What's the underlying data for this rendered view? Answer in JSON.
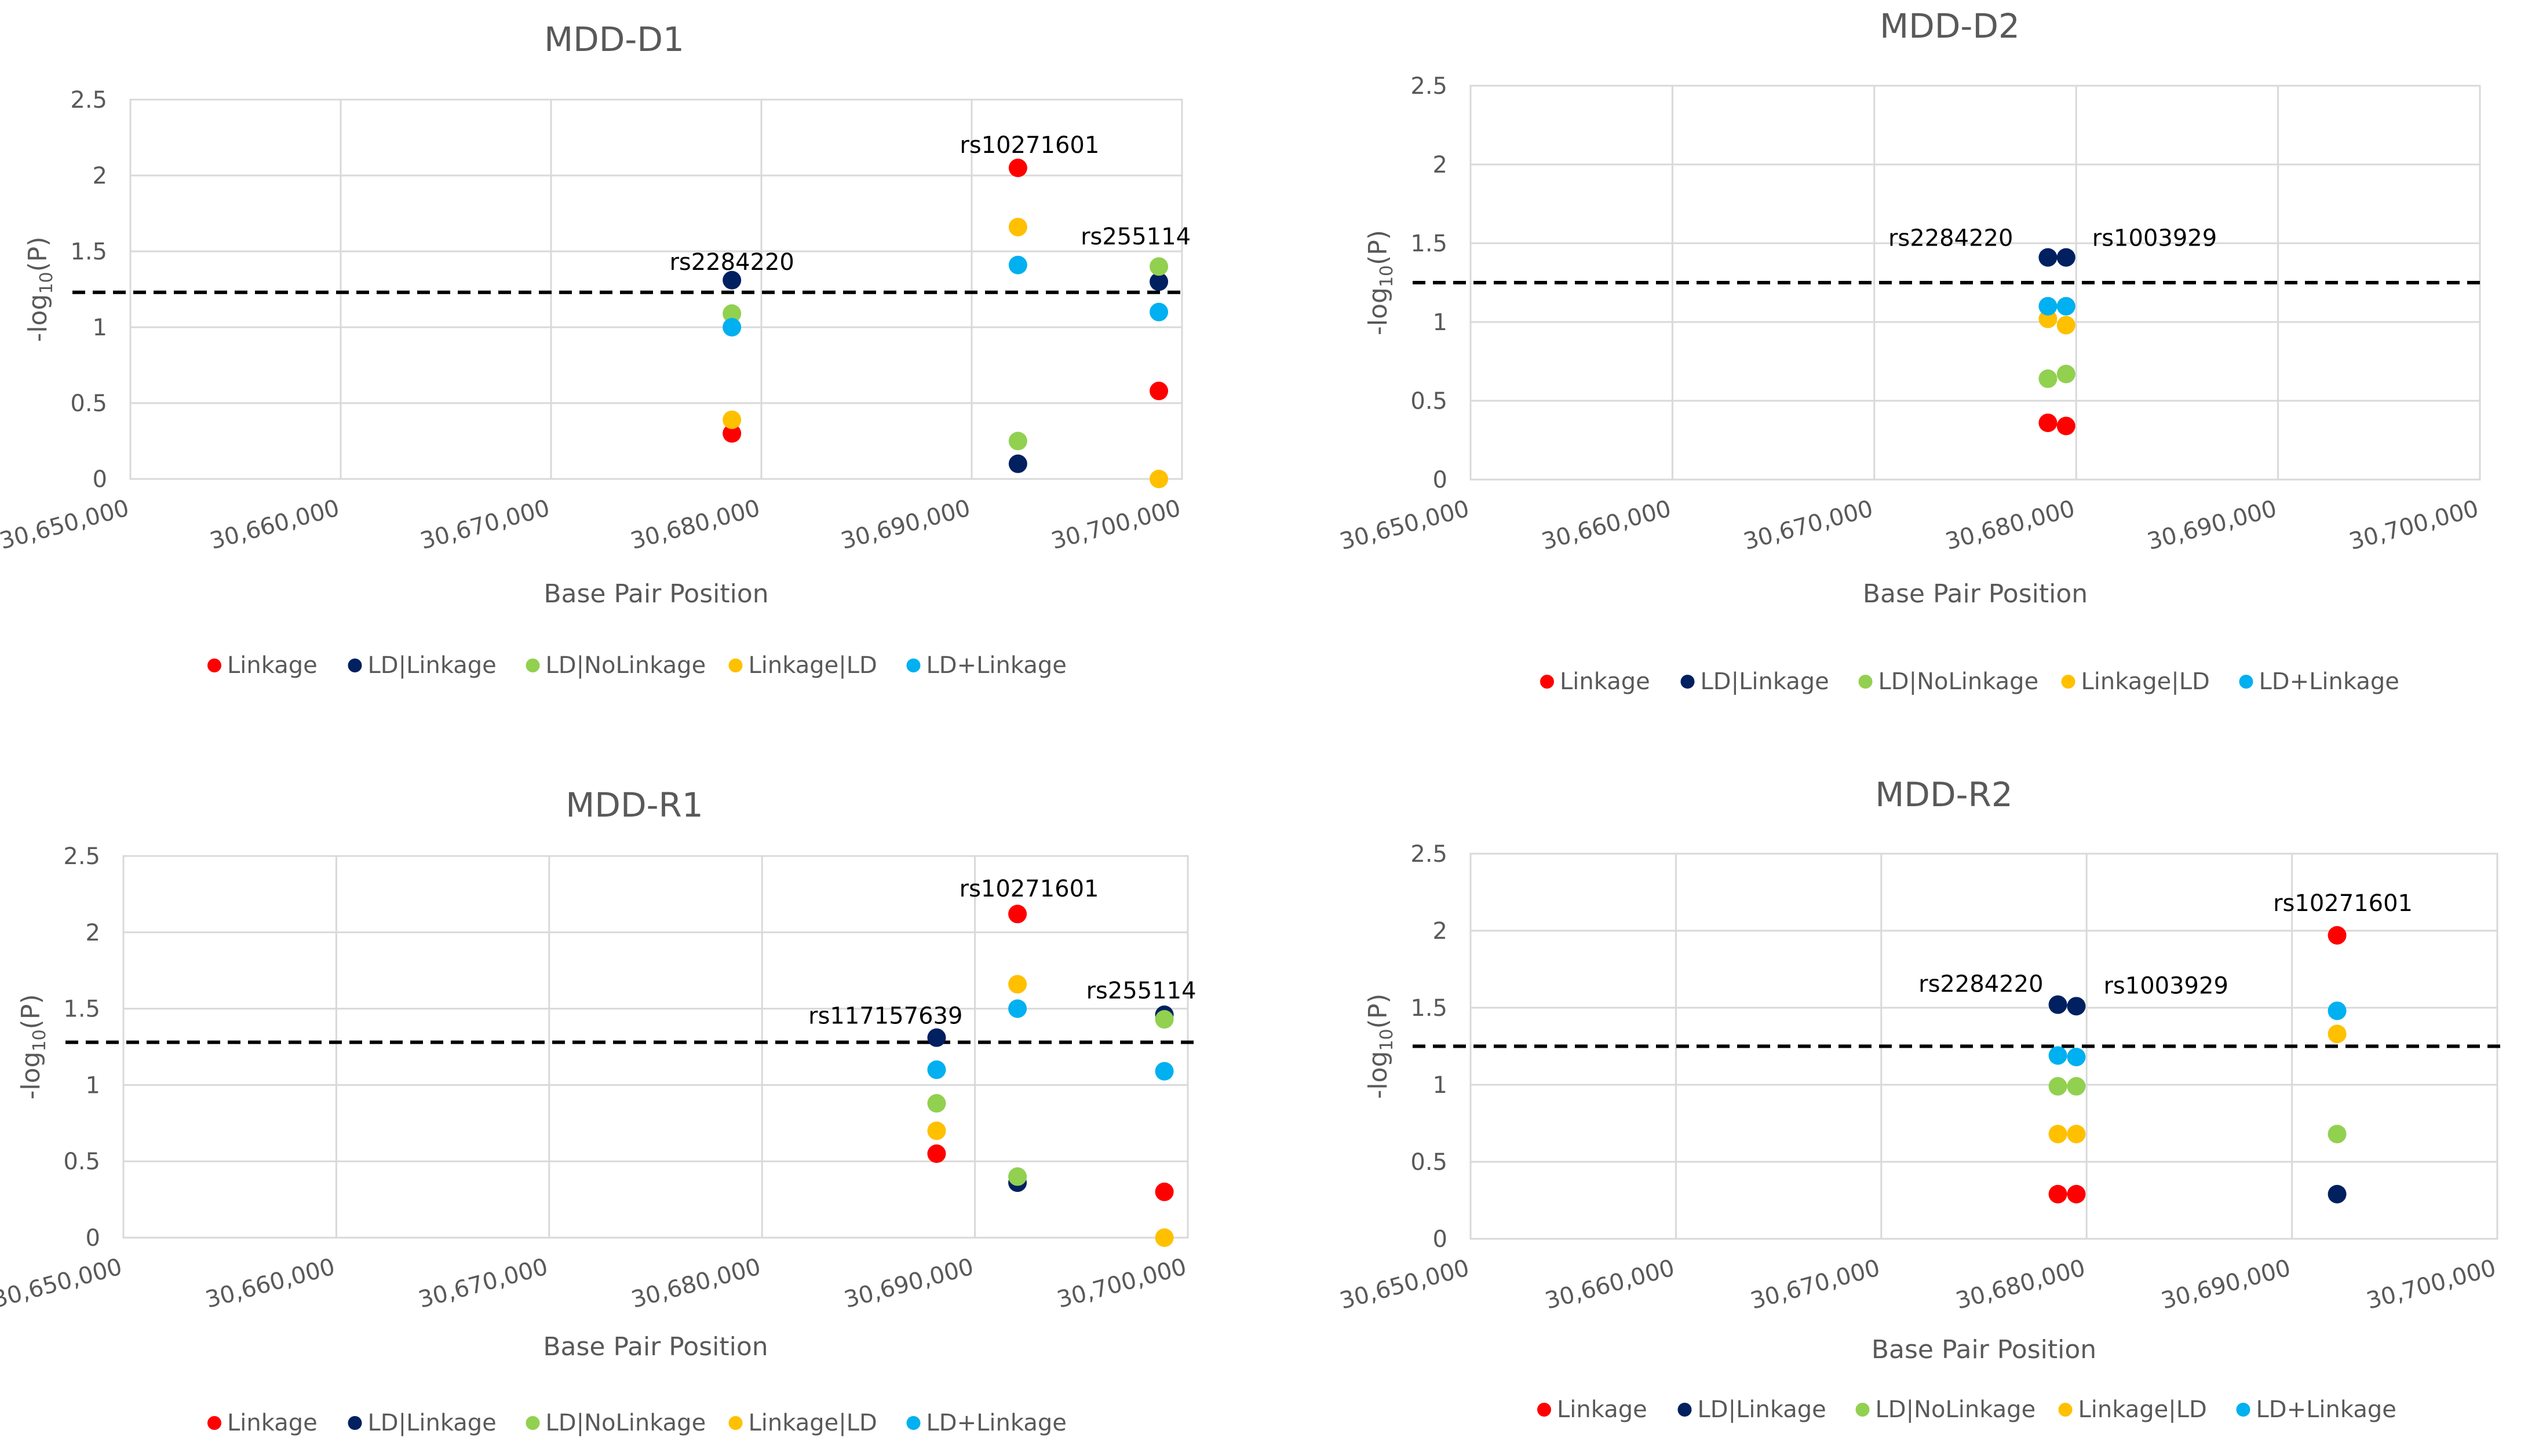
{
  "colors": {
    "Linkage": "#ff0000",
    "LD|Linkage": "#002060",
    "LD|NoLinkage": "#92d050",
    "Linkage|LD": "#ffc000",
    "LD+Linkage": "#00b0f0"
  },
  "chart_data": [
    {
      "type": "scatter",
      "title": "MDD-D1",
      "xlabel": "Base Pair Position",
      "ylabel": "-log10(P)",
      "xlim": [
        30650000,
        30700000
      ],
      "ylim": [
        0,
        2.5
      ],
      "xticks": [
        "30,650,000",
        "30,660,000",
        "30,670,000",
        "30,680,000",
        "30,690,000",
        "30,700,000"
      ],
      "yticks": [
        "0",
        "0.5",
        "1",
        "1.5",
        "2",
        "2.5"
      ],
      "threshold": 1.23,
      "series": [
        {
          "name": "Linkage",
          "points": [
            [
              30678600,
              0.3
            ],
            [
              30692200,
              2.05
            ],
            [
              30698900,
              0.58
            ]
          ]
        },
        {
          "name": "LD|Linkage",
          "points": [
            [
              30678600,
              1.31
            ],
            [
              30692200,
              0.1
            ],
            [
              30698900,
              1.3
            ]
          ]
        },
        {
          "name": "LD|NoLinkage",
          "points": [
            [
              30678600,
              1.09
            ],
            [
              30692200,
              0.25
            ],
            [
              30698900,
              1.4
            ]
          ]
        },
        {
          "name": "Linkage|LD",
          "points": [
            [
              30678600,
              0.39
            ],
            [
              30692200,
              1.66
            ],
            [
              30698900,
              0.0
            ]
          ]
        },
        {
          "name": "LD+Linkage",
          "points": [
            [
              30678600,
              1.0
            ],
            [
              30692200,
              1.41
            ],
            [
              30698900,
              1.1
            ]
          ]
        }
      ],
      "annotations": [
        {
          "text": "rs2284220",
          "x": 30678600,
          "y": 1.31
        },
        {
          "text": "rs10271601",
          "x": 30692200,
          "y": 2.05
        },
        {
          "text": "rs255114",
          "x": 30698900,
          "y": 1.4
        }
      ],
      "legend": [
        "Linkage",
        "LD|Linkage",
        "LD|NoLinkage",
        "Linkage|LD",
        "LD+Linkage"
      ]
    },
    {
      "type": "scatter",
      "title": "MDD-D2",
      "xlabel": "Base Pair Position",
      "ylabel": "-log10(P)",
      "xlim": [
        30650000,
        30700000
      ],
      "ylim": [
        0,
        2.5
      ],
      "xticks": [
        "30,650,000",
        "30,660,000",
        "30,670,000",
        "30,680,000",
        "30,690,000",
        "30,700,000"
      ],
      "yticks": [
        "0",
        "0.5",
        "1",
        "1.5",
        "2",
        "2.5"
      ],
      "threshold": 1.25,
      "series": [
        {
          "name": "Linkage",
          "points": [
            [
              30678600,
              0.36
            ],
            [
              30679500,
              0.34
            ]
          ]
        },
        {
          "name": "LD|Linkage",
          "points": [
            [
              30678600,
              1.41
            ],
            [
              30679500,
              1.41
            ]
          ]
        },
        {
          "name": "LD|NoLinkage",
          "points": [
            [
              30678600,
              0.64
            ],
            [
              30679500,
              0.67
            ]
          ]
        },
        {
          "name": "Linkage|LD",
          "points": [
            [
              30678600,
              1.02
            ],
            [
              30679500,
              0.98
            ]
          ]
        },
        {
          "name": "LD+Linkage",
          "points": [
            [
              30678600,
              1.1
            ],
            [
              30679500,
              1.1
            ]
          ]
        }
      ],
      "annotations": [
        {
          "text": "rs2284220",
          "x": 30678600,
          "y": 1.41
        },
        {
          "text": "rs1003929",
          "x": 30679500,
          "y": 1.41
        }
      ],
      "legend": [
        "Linkage",
        "LD|Linkage",
        "LD|NoLinkage",
        "Linkage|LD",
        "LD+Linkage"
      ]
    },
    {
      "type": "scatter",
      "title": "MDD-R1",
      "xlabel": "Base Pair Position",
      "ylabel": "-log10(P)",
      "xlim": [
        30650000,
        30700000
      ],
      "ylim": [
        0,
        2.5
      ],
      "xticks": [
        "30,650,000",
        "30,660,000",
        "30,670,000",
        "30,680,000",
        "30,690,000",
        "30,700,000"
      ],
      "yticks": [
        "0",
        "0.5",
        "1",
        "1.5",
        "2",
        "2.5"
      ],
      "threshold": 1.28,
      "series": [
        {
          "name": "Linkage",
          "points": [
            [
              30688200,
              0.55
            ],
            [
              30692000,
              2.12
            ],
            [
              30698900,
              0.3
            ]
          ]
        },
        {
          "name": "LD|Linkage",
          "points": [
            [
              30688200,
              1.31
            ],
            [
              30692000,
              0.36
            ],
            [
              30698900,
              1.46
            ]
          ]
        },
        {
          "name": "LD|NoLinkage",
          "points": [
            [
              30688200,
              0.88
            ],
            [
              30692000,
              0.4
            ],
            [
              30698900,
              1.43
            ]
          ]
        },
        {
          "name": "Linkage|LD",
          "points": [
            [
              30688200,
              0.7
            ],
            [
              30692000,
              1.66
            ],
            [
              30698900,
              0.0
            ]
          ]
        },
        {
          "name": "LD+Linkage",
          "points": [
            [
              30688200,
              1.1
            ],
            [
              30692000,
              1.5
            ],
            [
              30698900,
              1.09
            ]
          ]
        }
      ],
      "annotations": [
        {
          "text": "rs117157639",
          "x": 30688200,
          "y": 1.31
        },
        {
          "text": "rs10271601",
          "x": 30692000,
          "y": 2.12
        },
        {
          "text": "rs255114",
          "x": 30698900,
          "y": 1.46
        }
      ],
      "legend": [
        "Linkage",
        "LD|Linkage",
        "LD|NoLinkage",
        "Linkage|LD",
        "LD+Linkage"
      ]
    },
    {
      "type": "scatter",
      "title": "MDD-R2",
      "xlabel": "Base Pair Position",
      "ylabel": "-log10(P)",
      "xlim": [
        30650000,
        30700000
      ],
      "ylim": [
        0,
        2.5
      ],
      "xticks": [
        "30,650,000",
        "30,660,000",
        "30,670,000",
        "30,680,000",
        "30,690,000",
        "30,700,000"
      ],
      "yticks": [
        "0",
        "0.5",
        "1",
        "1.5",
        "2",
        "2.5"
      ],
      "threshold": 1.25,
      "series": [
        {
          "name": "Linkage",
          "points": [
            [
              30678600,
              0.29
            ],
            [
              30679500,
              0.29
            ],
            [
              30692200,
              1.97
            ]
          ]
        },
        {
          "name": "LD|Linkage",
          "points": [
            [
              30678600,
              1.52
            ],
            [
              30679500,
              1.51
            ],
            [
              30692200,
              0.29
            ]
          ]
        },
        {
          "name": "LD|NoLinkage",
          "points": [
            [
              30678600,
              0.99
            ],
            [
              30679500,
              0.99
            ],
            [
              30692200,
              0.68
            ]
          ]
        },
        {
          "name": "Linkage|LD",
          "points": [
            [
              30678600,
              0.68
            ],
            [
              30679500,
              0.68
            ],
            [
              30692200,
              1.33
            ]
          ]
        },
        {
          "name": "LD+Linkage",
          "points": [
            [
              30678600,
              1.19
            ],
            [
              30679500,
              1.18
            ],
            [
              30692200,
              1.48
            ]
          ]
        }
      ],
      "annotations": [
        {
          "text": "rs2284220",
          "x": 30678600,
          "y": 1.52
        },
        {
          "text": "rs1003929",
          "x": 30679500,
          "y": 1.51
        },
        {
          "text": "rs10271601",
          "x": 30692200,
          "y": 1.97
        }
      ],
      "legend": [
        "Linkage",
        "LD|Linkage",
        "LD|NoLinkage",
        "Linkage|LD",
        "LD+Linkage"
      ]
    }
  ]
}
